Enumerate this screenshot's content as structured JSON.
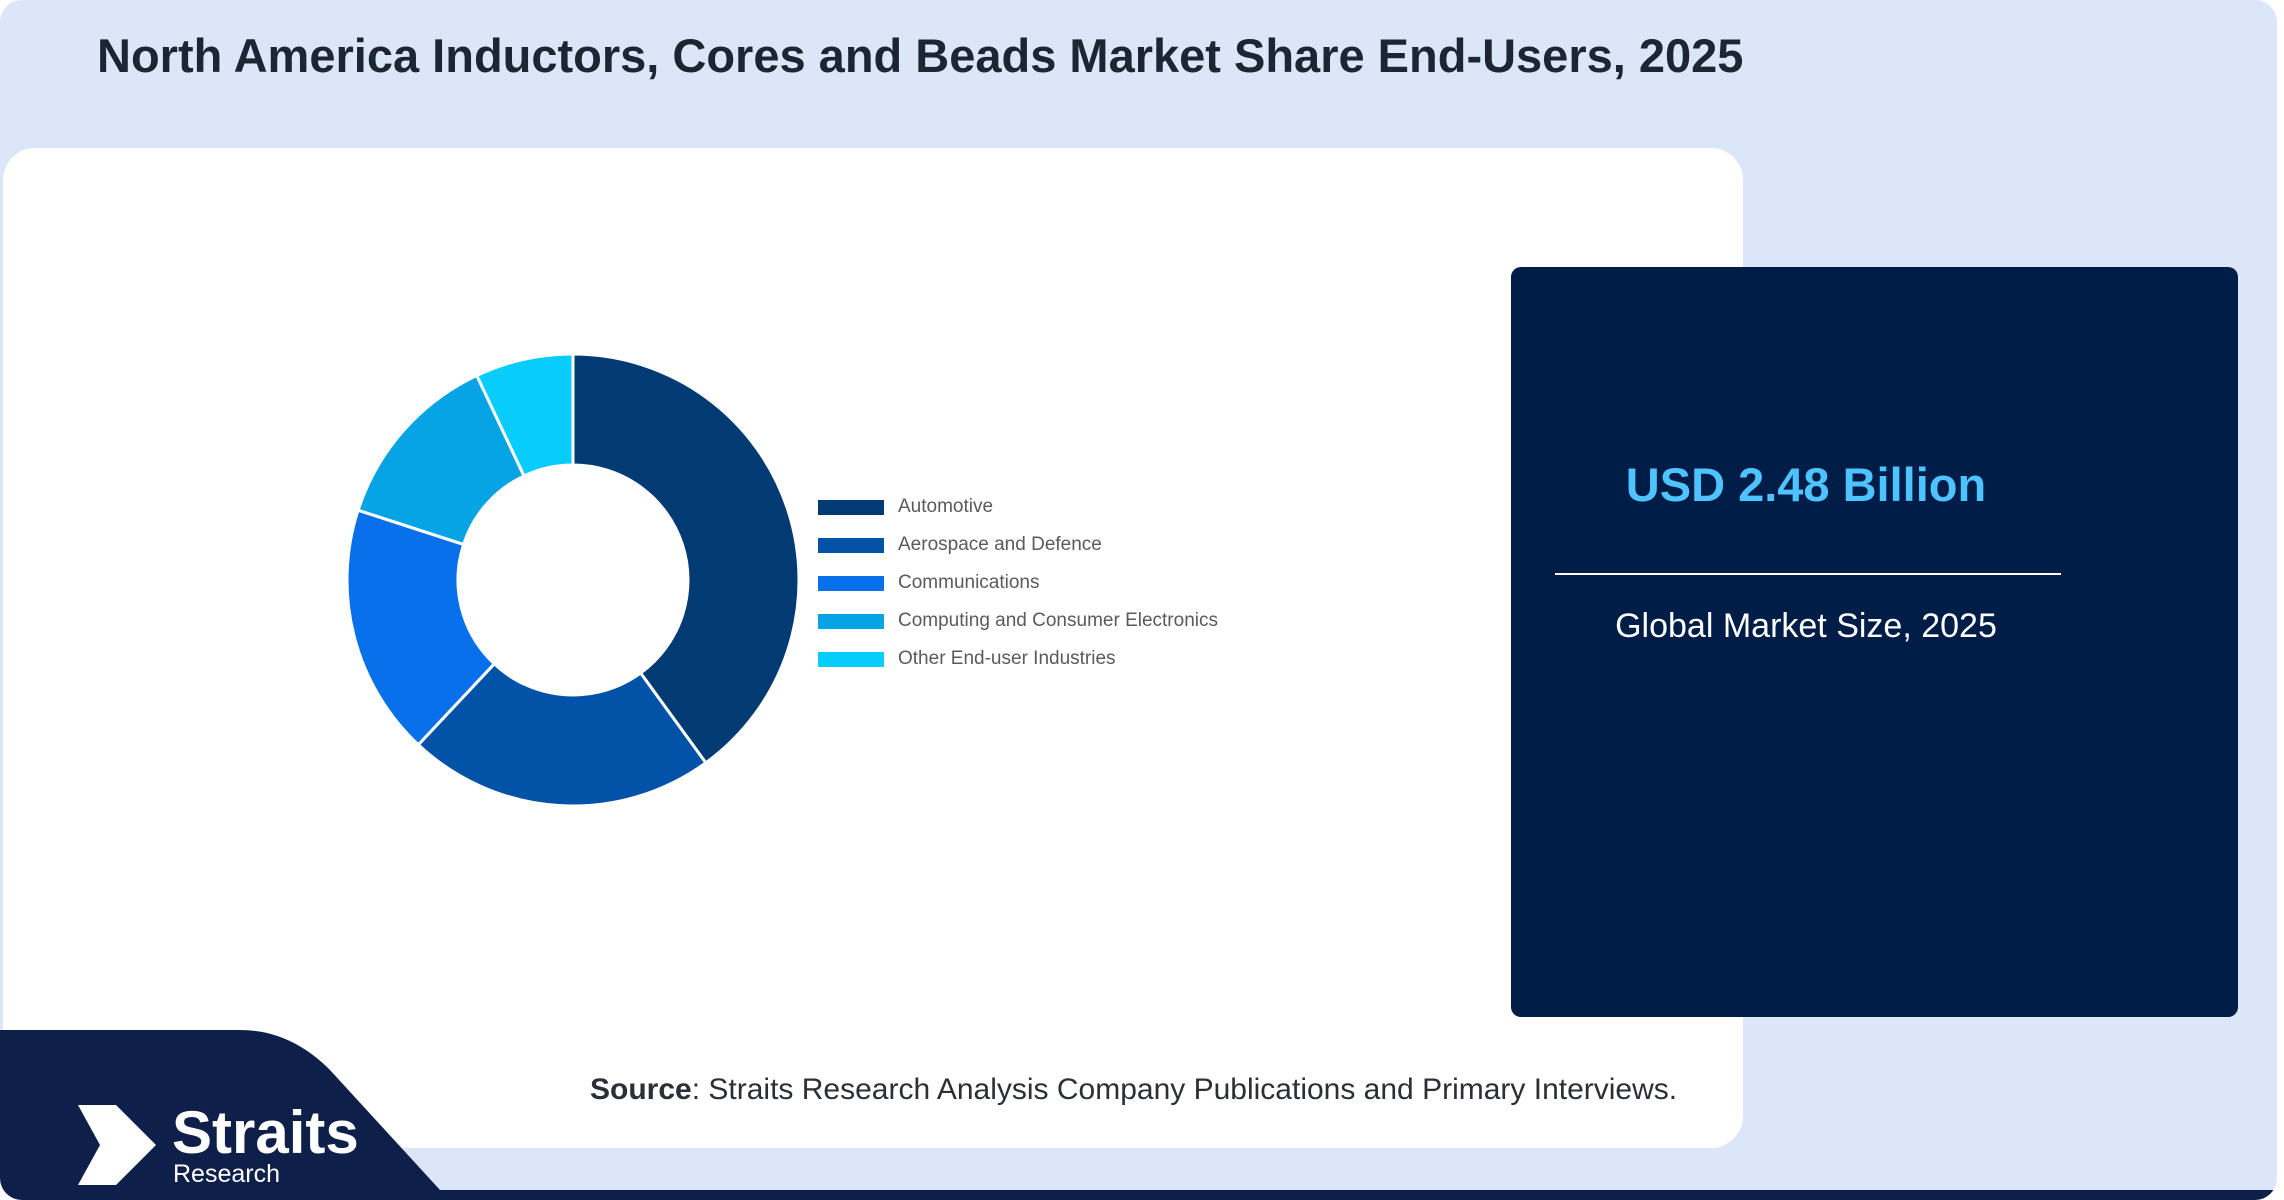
{
  "title": "North America Inductors, Cores and Beads Market Share End-Users, 2025",
  "chart_data": {
    "type": "pie",
    "subtype": "donut",
    "categories": [
      "Automotive",
      "Aerospace and Defence",
      "Communications",
      "Computing and Consumer Electronics",
      "Other End-user Industries"
    ],
    "values": [
      40,
      22,
      18,
      13,
      7
    ],
    "colors": [
      "#023a74",
      "#0253a8",
      "#0870ea",
      "#06a4e4",
      "#07ccfc"
    ],
    "legend_position": "right"
  },
  "info_card": {
    "market_value": "USD 2.48 Billion",
    "caption": "Global Market Size, 2025"
  },
  "source": {
    "label": "Source",
    "text": ": Straits Research Analysis Company Publications and Primary Interviews."
  },
  "logo": {
    "name": "Straits",
    "sub": "Research"
  },
  "colors": {
    "background": "#dbe6f8",
    "card": "#001d47",
    "accent": "#4dc3ff",
    "band": "#0e1f4a"
  }
}
